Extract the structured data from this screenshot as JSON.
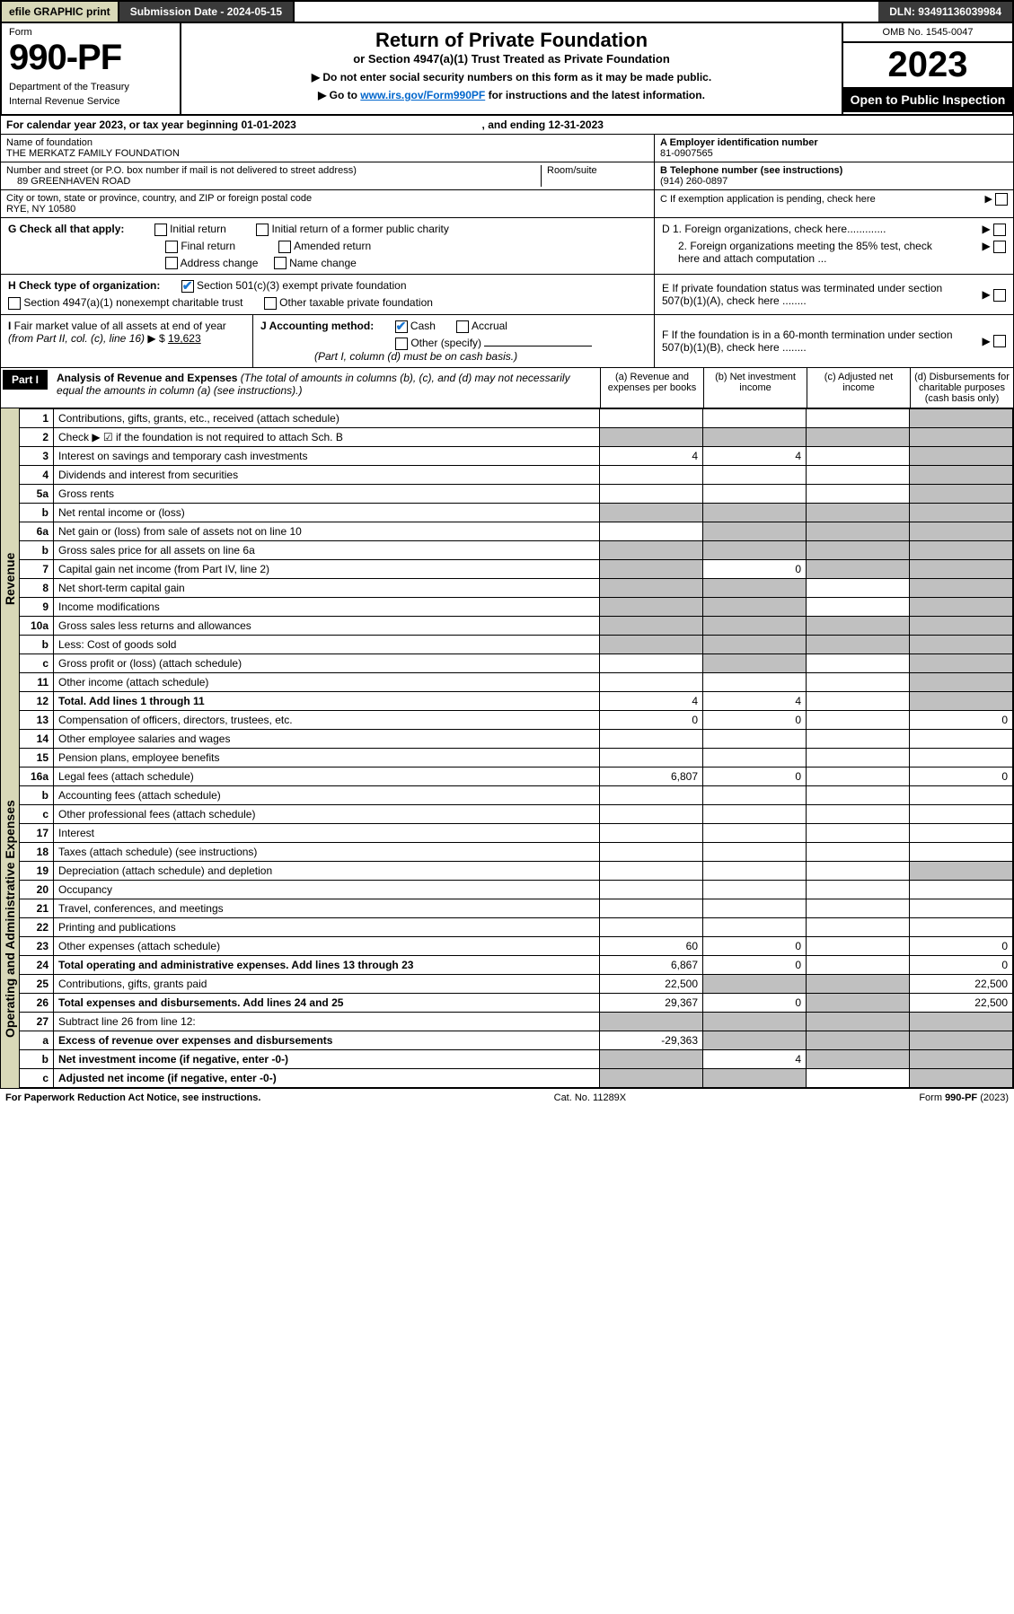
{
  "topbar": {
    "efile": "efile GRAPHIC print",
    "subdate_label": "Submission Date - 2024-05-15",
    "dln": "DLN: 93491136039984"
  },
  "header": {
    "form_label": "Form",
    "form_num": "990-PF",
    "dept1": "Department of the Treasury",
    "dept2": "Internal Revenue Service",
    "title": "Return of Private Foundation",
    "sub": "or Section 4947(a)(1) Trust Treated as Private Foundation",
    "instr1": "▶ Do not enter social security numbers on this form as it may be made public.",
    "instr2_a": "▶ Go to ",
    "instr2_link": "www.irs.gov/Form990PF",
    "instr2_b": " for instructions and the latest information.",
    "omb": "OMB No. 1545-0047",
    "year": "2023",
    "inspect": "Open to Public Inspection"
  },
  "calendar": {
    "text_a": "For calendar year 2023, or tax year beginning ",
    "begin": "01-01-2023",
    "text_b": " , and ending ",
    "end": "12-31-2023"
  },
  "id": {
    "name_label": "Name of foundation",
    "name": "THE MERKATZ FAMILY FOUNDATION",
    "addr_label": "Number and street (or P.O. box number if mail is not delivered to street address)",
    "addr": "89 GREENHAVEN ROAD",
    "room_label": "Room/suite",
    "city_label": "City or town, state or province, country, and ZIP or foreign postal code",
    "city": "RYE, NY  10580",
    "ein_label": "A Employer identification number",
    "ein": "81-0907565",
    "phone_label": "B Telephone number (see instructions)",
    "phone": "(914) 260-0897",
    "c_label": "C If exemption application is pending, check here",
    "d1_label": "D 1. Foreign organizations, check here.............",
    "d2_label": "2. Foreign organizations meeting the 85% test, check here and attach computation ...",
    "e_label": "E If private foundation status was terminated under section 507(b)(1)(A), check here ........",
    "f_label": "F If the foundation is in a 60-month termination under section 507(b)(1)(B), check here ........"
  },
  "g": {
    "label": "G Check all that apply:",
    "initial": "Initial return",
    "initial_former": "Initial return of a former public charity",
    "final": "Final return",
    "amended": "Amended return",
    "addr_change": "Address change",
    "name_change": "Name change"
  },
  "h": {
    "label": "H Check type of organization:",
    "c3": "Section 501(c)(3) exempt private foundation",
    "trust": "Section 4947(a)(1) nonexempt charitable trust",
    "other": "Other taxable private foundation"
  },
  "i": {
    "label": "I Fair market value of all assets at end of year (from Part II, col. (c), line 16) ▶ $",
    "value": "19,623"
  },
  "j": {
    "label": "J Accounting method:",
    "cash": "Cash",
    "accrual": "Accrual",
    "other": "Other (specify)",
    "note": "(Part I, column (d) must be on cash basis.)"
  },
  "parti_hdr": {
    "label": "Part I",
    "title": "Analysis of Revenue and Expenses",
    "note": " (The total of amounts in columns (b), (c), and (d) may not necessarily equal the amounts in column (a) (see instructions).)",
    "col_a": "(a) Revenue and expenses per books",
    "col_b": "(b) Net investment income",
    "col_c": "(c) Adjusted net income",
    "col_d": "(d) Disbursements for charitable purposes (cash basis only)"
  },
  "revenue_label": "Revenue",
  "expenses_label": "Operating and Administrative Expenses",
  "rows": {
    "1": {
      "num": "1",
      "desc": "Contributions, gifts, grants, etc., received (attach schedule)"
    },
    "2": {
      "num": "2",
      "desc": "Check ▶ ☑ if the foundation is not required to attach Sch. B"
    },
    "3": {
      "num": "3",
      "desc": "Interest on savings and temporary cash investments",
      "a": "4",
      "b": "4"
    },
    "4": {
      "num": "4",
      "desc": "Dividends and interest from securities"
    },
    "5a": {
      "num": "5a",
      "desc": "Gross rents"
    },
    "5b": {
      "num": "b",
      "desc": "Net rental income or (loss)"
    },
    "6a": {
      "num": "6a",
      "desc": "Net gain or (loss) from sale of assets not on line 10"
    },
    "6b": {
      "num": "b",
      "desc": "Gross sales price for all assets on line 6a"
    },
    "7": {
      "num": "7",
      "desc": "Capital gain net income (from Part IV, line 2)",
      "b": "0"
    },
    "8": {
      "num": "8",
      "desc": "Net short-term capital gain"
    },
    "9": {
      "num": "9",
      "desc": "Income modifications"
    },
    "10a": {
      "num": "10a",
      "desc": "Gross sales less returns and allowances"
    },
    "10b": {
      "num": "b",
      "desc": "Less: Cost of goods sold"
    },
    "10c": {
      "num": "c",
      "desc": "Gross profit or (loss) (attach schedule)"
    },
    "11": {
      "num": "11",
      "desc": "Other income (attach schedule)"
    },
    "12": {
      "num": "12",
      "desc": "Total. Add lines 1 through 11",
      "a": "4",
      "b": "4",
      "bold": true
    },
    "13": {
      "num": "13",
      "desc": "Compensation of officers, directors, trustees, etc.",
      "a": "0",
      "b": "0",
      "d": "0"
    },
    "14": {
      "num": "14",
      "desc": "Other employee salaries and wages"
    },
    "15": {
      "num": "15",
      "desc": "Pension plans, employee benefits"
    },
    "16a": {
      "num": "16a",
      "desc": "Legal fees (attach schedule)",
      "a": "6,807",
      "b": "0",
      "d": "0"
    },
    "16b": {
      "num": "b",
      "desc": "Accounting fees (attach schedule)"
    },
    "16c": {
      "num": "c",
      "desc": "Other professional fees (attach schedule)"
    },
    "17": {
      "num": "17",
      "desc": "Interest"
    },
    "18": {
      "num": "18",
      "desc": "Taxes (attach schedule) (see instructions)"
    },
    "19": {
      "num": "19",
      "desc": "Depreciation (attach schedule) and depletion"
    },
    "20": {
      "num": "20",
      "desc": "Occupancy"
    },
    "21": {
      "num": "21",
      "desc": "Travel, conferences, and meetings"
    },
    "22": {
      "num": "22",
      "desc": "Printing and publications"
    },
    "23": {
      "num": "23",
      "desc": "Other expenses (attach schedule)",
      "a": "60",
      "b": "0",
      "d": "0"
    },
    "24": {
      "num": "24",
      "desc": "Total operating and administrative expenses. Add lines 13 through 23",
      "a": "6,867",
      "b": "0",
      "d": "0",
      "bold": true
    },
    "25": {
      "num": "25",
      "desc": "Contributions, gifts, grants paid",
      "a": "22,500",
      "d": "22,500"
    },
    "26": {
      "num": "26",
      "desc": "Total expenses and disbursements. Add lines 24 and 25",
      "a": "29,367",
      "b": "0",
      "d": "22,500",
      "bold": true
    },
    "27": {
      "num": "27",
      "desc": "Subtract line 26 from line 12:"
    },
    "27a": {
      "num": "a",
      "desc": "Excess of revenue over expenses and disbursements",
      "a": "-29,363",
      "bold": true
    },
    "27b": {
      "num": "b",
      "desc": "Net investment income (if negative, enter -0-)",
      "b": "4",
      "bold": true
    },
    "27c": {
      "num": "c",
      "desc": "Adjusted net income (if negative, enter -0-)",
      "bold": true
    }
  },
  "styling": {
    "shade_color": "#c0c0c0",
    "header_bg": "#3a3a3a",
    "side_bg": "#d8d8b8",
    "link_color": "#0066cc",
    "check_color": "#1976d2"
  },
  "footer": {
    "left": "For Paperwork Reduction Act Notice, see instructions.",
    "mid": "Cat. No. 11289X",
    "right": "Form 990-PF (2023)"
  }
}
